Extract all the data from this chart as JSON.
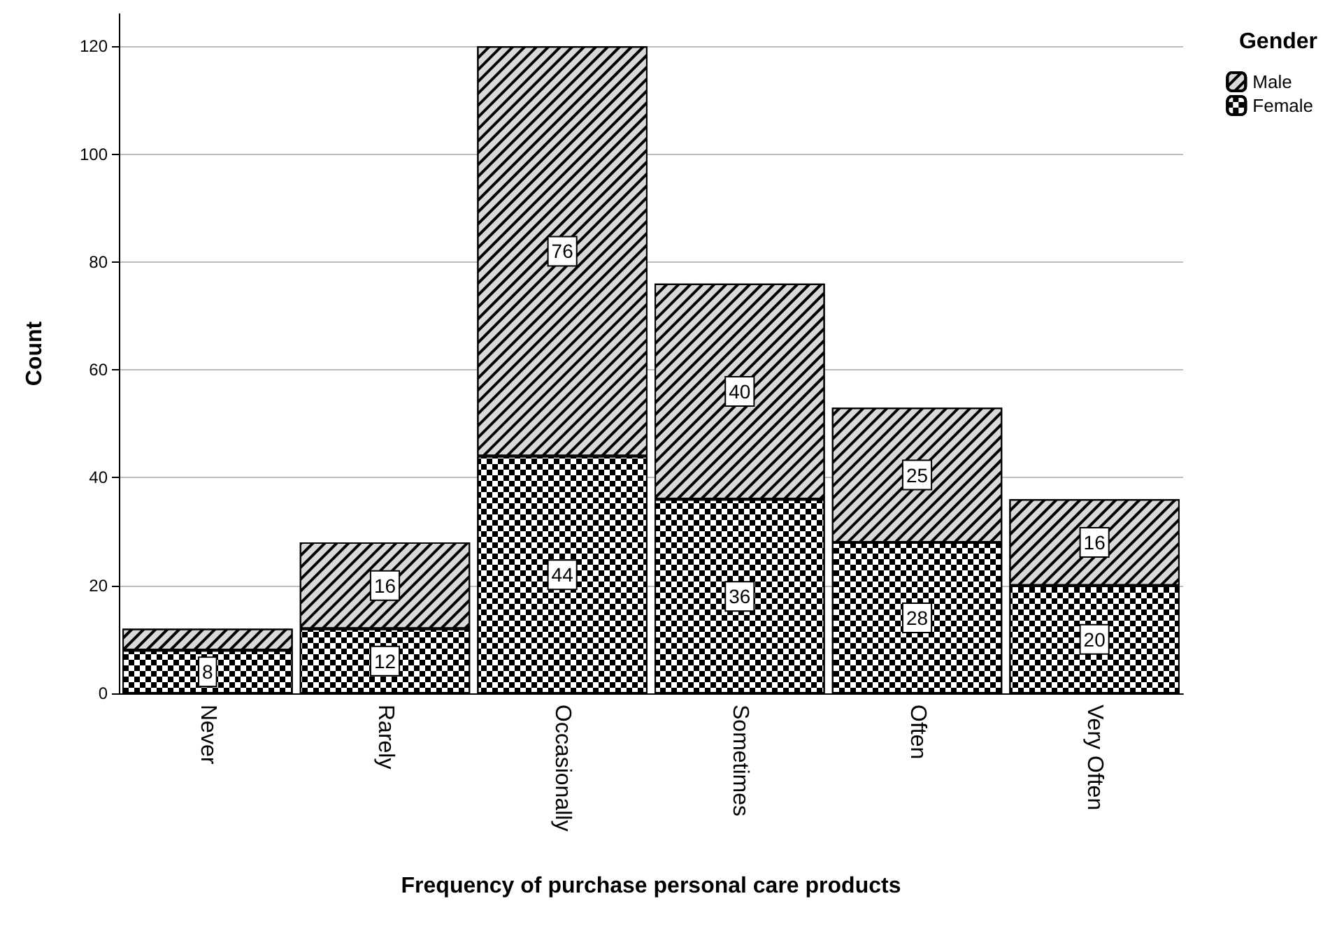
{
  "chart_data": {
    "type": "bar",
    "stacked": true,
    "xlabel": "Frequency of purchase personal care products",
    "ylabel": "Count",
    "legend_title": "Gender",
    "legend": "top right",
    "grid": "y",
    "categories": [
      "Never",
      "Rarely",
      "Occasionally",
      "Sometimes",
      "Often",
      "Very Often"
    ],
    "ylim": [
      0,
      126
    ],
    "yticks": [
      0,
      20,
      40,
      60,
      80,
      100,
      120
    ],
    "series": [
      {
        "name": "Female",
        "color": "#ffffff",
        "values": [
          8,
          12,
          44,
          36,
          28,
          20
        ],
        "value_labels": [
          "8",
          "12",
          "44",
          "36",
          "28",
          "20"
        ]
      },
      {
        "name": "Male",
        "color": "#d9d9d9",
        "values": [
          4,
          16,
          76,
          40,
          25,
          16
        ],
        "value_labels": [
          null,
          "16",
          "76",
          "40",
          "25",
          "16"
        ]
      }
    ]
  }
}
